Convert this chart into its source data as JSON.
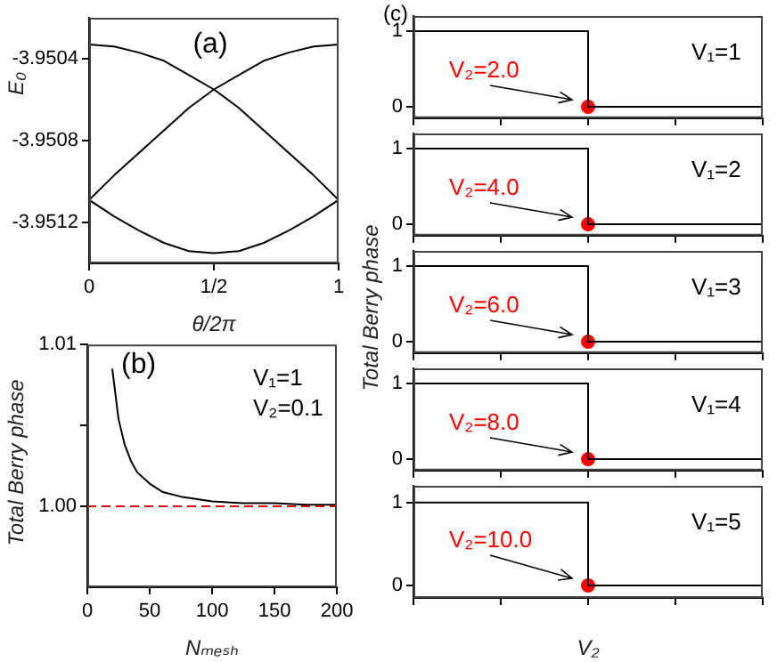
{
  "chart_data": [
    {
      "type": "line",
      "title": "(a)",
      "xlabel": "θ/2π",
      "ylabel": "E₀",
      "xlim": [
        0,
        1
      ],
      "xticks": [
        0,
        {
          "value": 0.5,
          "label": "1/2"
        },
        1
      ],
      "ylim": [
        -3.9514,
        -3.9502
      ],
      "yticks": [
        -3.9504,
        -3.9508,
        -3.9512
      ],
      "grid": false,
      "legend": false,
      "x": [
        0,
        0.1,
        0.2,
        0.3,
        0.4,
        0.5,
        0.6,
        0.7,
        0.8,
        0.9,
        1
      ],
      "series": [
        {
          "color": "#000000",
          "values": [
            -3.95033,
            -3.95034,
            -3.95037,
            -3.95041,
            -3.95048,
            -3.95055,
            -3.95064,
            -3.95075,
            -3.95086,
            -3.95097,
            -3.95109
          ]
        },
        {
          "color": "#000000",
          "values": [
            -3.95109,
            -3.95097,
            -3.95086,
            -3.95075,
            -3.95064,
            -3.95055,
            -3.95048,
            -3.95041,
            -3.95037,
            -3.95034,
            -3.95033
          ]
        },
        {
          "color": "#000000",
          "values": [
            -3.95109,
            -3.95117,
            -3.95124,
            -3.9513,
            -3.95134,
            -3.95135,
            -3.95134,
            -3.9513,
            -3.95124,
            -3.95117,
            -3.95109
          ]
        }
      ]
    },
    {
      "type": "line",
      "title": "(b)",
      "xlabel": "Nₘₑₛₕ",
      "ylabel": "Total Berry phase",
      "xlim": [
        0,
        200
      ],
      "xticks": [
        0,
        50,
        100,
        150,
        200
      ],
      "ylim": [
        0.995,
        1.01
      ],
      "yticks": [
        {
          "value": 1,
          "label": "1.00"
        },
        {
          "value": 1.005,
          "label": null
        },
        {
          "value": 1.01,
          "label": "1.01"
        }
      ],
      "grid": false,
      "legend": false,
      "annotations": [
        "V₁=1",
        "V₂=0.1"
      ],
      "ref_lines": [
        {
          "axis": "y",
          "value": 1,
          "color": "#e00000",
          "line_style": "dashed"
        }
      ],
      "x": [
        20,
        25,
        30,
        35,
        40,
        50,
        60,
        75,
        100,
        125,
        150,
        175,
        200
      ],
      "series": [
        {
          "color": "#000000",
          "values": [
            1.0085,
            1.0054,
            1.0038,
            1.0028,
            1.0021,
            1.0014,
            1.0009,
            1.0006,
            1.0003,
            1.0002,
            1.0002,
            1.0001,
            1.0001
          ]
        }
      ]
    },
    {
      "type": "step",
      "title": "(c)",
      "categories": [
        null,
        null,
        null,
        null,
        null
      ],
      "ylim": [
        -0.15,
        1.2
      ],
      "yticks": [
        0,
        1
      ],
      "tick_labels": "y",
      "grid": false,
      "legend": false,
      "annotations": [
        "V₂=2.0",
        "V₁=1"
      ],
      "series": [
        {
          "color": "#000000",
          "values": [
            1,
            1,
            0,
            0,
            0
          ]
        },
        {
          "type": "scatter",
          "color": "#ff0000",
          "marker": "circle",
          "values": [
            null,
            null,
            0,
            null,
            null
          ]
        }
      ]
    },
    {
      "type": "step",
      "categories": [
        null,
        null,
        null,
        null,
        null
      ],
      "ylim": [
        -0.15,
        1.2
      ],
      "yticks": [
        0,
        1
      ],
      "tick_labels": "y",
      "grid": false,
      "legend": false,
      "annotations": [
        "V₂=4.0",
        "V₁=2"
      ],
      "series": [
        {
          "color": "#000000",
          "values": [
            1,
            1,
            0,
            0,
            0
          ]
        },
        {
          "type": "scatter",
          "color": "#ff0000",
          "marker": "circle",
          "values": [
            null,
            null,
            0,
            null,
            null
          ]
        }
      ]
    },
    {
      "type": "step",
      "ylabel": "Total Berry phase",
      "categories": [
        null,
        null,
        null,
        null,
        null
      ],
      "ylim": [
        -0.15,
        1.2
      ],
      "yticks": [
        0,
        1
      ],
      "tick_labels": "y",
      "grid": false,
      "legend": false,
      "annotations": [
        "V₂=6.0",
        "V₁=3"
      ],
      "series": [
        {
          "color": "#000000",
          "values": [
            1,
            1,
            0,
            0,
            0
          ]
        },
        {
          "type": "scatter",
          "color": "#ff0000",
          "marker": "circle",
          "values": [
            null,
            null,
            0,
            null,
            null
          ]
        }
      ]
    },
    {
      "type": "step",
      "categories": [
        null,
        null,
        null,
        null,
        null
      ],
      "ylim": [
        -0.15,
        1.2
      ],
      "yticks": [
        0,
        1
      ],
      "tick_labels": "y",
      "grid": false,
      "legend": false,
      "annotations": [
        "V₂=8.0",
        "V₁=4"
      ],
      "series": [
        {
          "color": "#000000",
          "values": [
            1,
            1,
            0,
            0,
            0
          ]
        },
        {
          "type": "scatter",
          "color": "#ff0000",
          "marker": "circle",
          "values": [
            null,
            null,
            0,
            null,
            null
          ]
        }
      ]
    },
    {
      "type": "step",
      "xlabel": "V₂",
      "categories": [
        null,
        null,
        null,
        null,
        null
      ],
      "ylim": [
        -0.15,
        1.2
      ],
      "yticks": [
        0,
        1
      ],
      "tick_labels": "y",
      "grid": false,
      "legend": false,
      "annotations": [
        "V₂=10.0",
        "V₁=5"
      ],
      "series": [
        {
          "color": "#000000",
          "values": [
            1,
            1,
            0,
            0,
            0
          ]
        },
        {
          "type": "scatter",
          "color": "#ff0000",
          "marker": "circle",
          "values": [
            null,
            null,
            0,
            null,
            null
          ]
        }
      ]
    }
  ]
}
